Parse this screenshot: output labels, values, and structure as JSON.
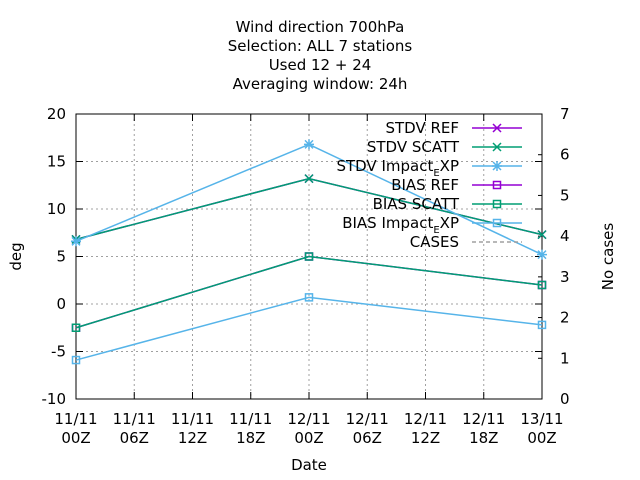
{
  "chart_data": {
    "type": "line",
    "title_lines": [
      "Wind direction 700hPa",
      "Selection: ALL      7 stations",
      "Used  12 + 24",
      "Averaging window: 24h"
    ],
    "xlabel": "Date",
    "ylabel": "deg",
    "y2label": "No cases",
    "x_ticks": [
      [
        "11/11",
        "00Z"
      ],
      [
        "11/11",
        "06Z"
      ],
      [
        "11/11",
        "12Z"
      ],
      [
        "11/11",
        "18Z"
      ],
      [
        "12/11",
        "00Z"
      ],
      [
        "12/11",
        "06Z"
      ],
      [
        "12/11",
        "12Z"
      ],
      [
        "12/11",
        "18Z"
      ],
      [
        "13/11",
        "00Z"
      ]
    ],
    "x_hours": [
      0,
      24,
      48
    ],
    "xlim_hours": [
      0,
      48
    ],
    "ylim": [
      -10,
      20
    ],
    "y_ticks": [
      -10,
      -5,
      0,
      5,
      10,
      15,
      20
    ],
    "y2lim": [
      0,
      7
    ],
    "y2_ticks": [
      0,
      1,
      2,
      3,
      4,
      5,
      6,
      7
    ],
    "grid": true,
    "legend_position": "top-right",
    "series": [
      {
        "name": "STDV REF",
        "color": "#9400d3",
        "marker": "x",
        "values": [
          6.8,
          13.2,
          7.3
        ]
      },
      {
        "name": "STDV SCATT",
        "color": "#009e73",
        "marker": "x",
        "values": [
          6.8,
          13.2,
          7.3
        ]
      },
      {
        "name_parts": [
          "STDV Impact",
          "E",
          "XP"
        ],
        "color": "#56b4e9",
        "marker": "star",
        "values": [
          6.6,
          16.8,
          5.2
        ]
      },
      {
        "name": "BIAS REF",
        "color": "#9400d3",
        "marker": "square",
        "values": [
          -2.5,
          5.0,
          2.0
        ]
      },
      {
        "name": "BIAS SCATT",
        "color": "#009e73",
        "marker": "square",
        "values": [
          -2.5,
          5.0,
          2.0
        ]
      },
      {
        "name_parts": [
          "BIAS Impact",
          "E",
          "XP"
        ],
        "color": "#56b4e9",
        "marker": "square",
        "values": [
          -5.9,
          0.7,
          -2.2
        ]
      },
      {
        "name": "CASES",
        "color": "#a0a0a0",
        "marker": "none",
        "dashed": true,
        "axis": "y2",
        "values": []
      }
    ]
  }
}
